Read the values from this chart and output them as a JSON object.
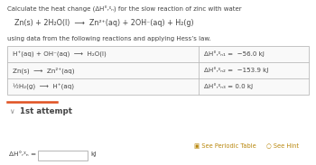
{
  "title": "Calculate the heat change (ΔH°ᵣᵡₙ) for the slow reaction of zinc with water",
  "main_reaction_left": "Zn(s) + 2H₂O(l)  ⟶  Zn²⁺(aq) + 2OH⁻(aq) + H₂(g)",
  "sub_heading": "using data from the following reactions and applying Hess’s law.",
  "table_rows": [
    {
      "reaction": "H⁺(aq) + OH⁻(aq)  ⟶  H₂O(l)",
      "delta_h": "ΔH°ᵣᵡₙ₁ =  −56.0 kJ"
    },
    {
      "reaction": "Zn(s)  ⟶  Zn²⁺(aq)",
      "delta_h": "ΔH°ᵣᵡₙ₂ =  −153.9 kJ"
    },
    {
      "reaction": "½H₂(g)  ⟶  H⁺(aq)",
      "delta_h": "ΔH°ᵣᵡₙ₃ = 0.0 kJ"
    }
  ],
  "attempt_label": "1st attempt",
  "answer_label": "ΔH°ᵣᵡₙ =",
  "answer_unit": "kJ",
  "see_periodic_table": "See Periodic Table",
  "see_hint": "See Hint",
  "bg_color": "#ffffff",
  "table_border_color": "#bbbbbb",
  "text_color": "#444444",
  "hint_color": "#b8860b",
  "divider_color": "#e05020",
  "answer_box_color": "#ffffff",
  "title_fontsize": 5.0,
  "reaction_fontsize": 5.8,
  "subheading_fontsize": 5.0,
  "table_fontsize": 5.1,
  "attempt_fontsize": 6.2,
  "answer_fontsize": 5.3,
  "link_fontsize": 4.8
}
